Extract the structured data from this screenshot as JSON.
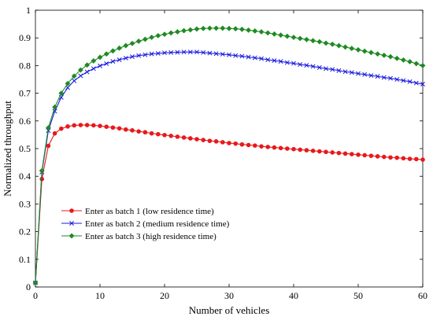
{
  "chart_data": {
    "type": "line",
    "title": "",
    "xlabel": "Number of vehicles",
    "ylabel": "Normalized throughput",
    "xlim": [
      0,
      60
    ],
    "ylim": [
      0,
      1
    ],
    "xticks": [
      0,
      10,
      20,
      30,
      40,
      50,
      60
    ],
    "yticks": [
      0,
      0.1,
      0.2,
      0.3,
      0.4,
      0.5,
      0.6,
      0.7,
      0.8,
      0.9,
      1
    ],
    "grid": false,
    "legend_position": "lower-left",
    "series": [
      {
        "name": "Enter as batch 1 (low residence time)",
        "color": "#e8191c",
        "marker": "dot",
        "points": [
          [
            0,
            0.015
          ],
          [
            1,
            0.39
          ],
          [
            2,
            0.51
          ],
          [
            3,
            0.555
          ],
          [
            4,
            0.572
          ],
          [
            5,
            0.58
          ],
          [
            6,
            0.584
          ],
          [
            7,
            0.585
          ],
          [
            8,
            0.585
          ],
          [
            9,
            0.584
          ],
          [
            10,
            0.582
          ],
          [
            11,
            0.579
          ],
          [
            12,
            0.576
          ],
          [
            13,
            0.573
          ],
          [
            14,
            0.569
          ],
          [
            15,
            0.566
          ],
          [
            16,
            0.562
          ],
          [
            17,
            0.559
          ],
          [
            18,
            0.555
          ],
          [
            19,
            0.552
          ],
          [
            20,
            0.549
          ],
          [
            21,
            0.546
          ],
          [
            22,
            0.543
          ],
          [
            23,
            0.54
          ],
          [
            24,
            0.537
          ],
          [
            25,
            0.534
          ],
          [
            26,
            0.531
          ],
          [
            27,
            0.528
          ],
          [
            28,
            0.526
          ],
          [
            29,
            0.523
          ],
          [
            30,
            0.52
          ],
          [
            31,
            0.518
          ],
          [
            32,
            0.515
          ],
          [
            33,
            0.513
          ],
          [
            34,
            0.511
          ],
          [
            35,
            0.508
          ],
          [
            36,
            0.506
          ],
          [
            37,
            0.504
          ],
          [
            38,
            0.502
          ],
          [
            39,
            0.5
          ],
          [
            40,
            0.498
          ],
          [
            41,
            0.496
          ],
          [
            42,
            0.494
          ],
          [
            43,
            0.492
          ],
          [
            44,
            0.49
          ],
          [
            45,
            0.488
          ],
          [
            46,
            0.486
          ],
          [
            47,
            0.484
          ],
          [
            48,
            0.482
          ],
          [
            49,
            0.48
          ],
          [
            50,
            0.478
          ],
          [
            51,
            0.476
          ],
          [
            52,
            0.474
          ],
          [
            53,
            0.472
          ],
          [
            54,
            0.47
          ],
          [
            55,
            0.468
          ],
          [
            56,
            0.467
          ],
          [
            57,
            0.465
          ],
          [
            58,
            0.463
          ],
          [
            59,
            0.462
          ],
          [
            60,
            0.46
          ]
        ]
      },
      {
        "name": "Enter as batch 2 (medium residence time)",
        "color": "#1a1adf",
        "marker": "x",
        "points": [
          [
            0,
            0.015
          ],
          [
            1,
            0.415
          ],
          [
            2,
            0.565
          ],
          [
            3,
            0.635
          ],
          [
            4,
            0.685
          ],
          [
            5,
            0.72
          ],
          [
            6,
            0.745
          ],
          [
            7,
            0.763
          ],
          [
            8,
            0.777
          ],
          [
            9,
            0.789
          ],
          [
            10,
            0.799
          ],
          [
            11,
            0.807
          ],
          [
            12,
            0.815
          ],
          [
            13,
            0.821
          ],
          [
            14,
            0.827
          ],
          [
            15,
            0.832
          ],
          [
            16,
            0.836
          ],
          [
            17,
            0.839
          ],
          [
            18,
            0.842
          ],
          [
            19,
            0.844
          ],
          [
            20,
            0.846
          ],
          [
            21,
            0.847
          ],
          [
            22,
            0.848
          ],
          [
            23,
            0.849
          ],
          [
            24,
            0.849
          ],
          [
            25,
            0.849
          ],
          [
            26,
            0.847
          ],
          [
            27,
            0.845
          ],
          [
            28,
            0.843
          ],
          [
            29,
            0.841
          ],
          [
            30,
            0.839
          ],
          [
            31,
            0.836
          ],
          [
            32,
            0.834
          ],
          [
            33,
            0.831
          ],
          [
            34,
            0.828
          ],
          [
            35,
            0.825
          ],
          [
            36,
            0.821
          ],
          [
            37,
            0.818
          ],
          [
            38,
            0.815
          ],
          [
            39,
            0.811
          ],
          [
            40,
            0.808
          ],
          [
            41,
            0.804
          ],
          [
            42,
            0.801
          ],
          [
            43,
            0.797
          ],
          [
            44,
            0.793
          ],
          [
            45,
            0.789
          ],
          [
            46,
            0.786
          ],
          [
            47,
            0.782
          ],
          [
            48,
            0.778
          ],
          [
            49,
            0.775
          ],
          [
            50,
            0.771
          ],
          [
            51,
            0.768
          ],
          [
            52,
            0.764
          ],
          [
            53,
            0.761
          ],
          [
            54,
            0.757
          ],
          [
            55,
            0.754
          ],
          [
            56,
            0.75
          ],
          [
            57,
            0.746
          ],
          [
            58,
            0.742
          ],
          [
            59,
            0.737
          ],
          [
            60,
            0.733
          ]
        ]
      },
      {
        "name": "Enter as batch 3 (high residence time)",
        "color": "#1f8a22",
        "marker": "diamond",
        "points": [
          [
            0,
            0.015
          ],
          [
            1,
            0.42
          ],
          [
            2,
            0.575
          ],
          [
            3,
            0.65
          ],
          [
            4,
            0.7
          ],
          [
            5,
            0.735
          ],
          [
            6,
            0.762
          ],
          [
            7,
            0.784
          ],
          [
            8,
            0.802
          ],
          [
            9,
            0.817
          ],
          [
            10,
            0.83
          ],
          [
            11,
            0.842
          ],
          [
            12,
            0.853
          ],
          [
            13,
            0.863
          ],
          [
            14,
            0.872
          ],
          [
            15,
            0.88
          ],
          [
            16,
            0.888
          ],
          [
            17,
            0.895
          ],
          [
            18,
            0.902
          ],
          [
            19,
            0.908
          ],
          [
            20,
            0.913
          ],
          [
            21,
            0.918
          ],
          [
            22,
            0.922
          ],
          [
            23,
            0.926
          ],
          [
            24,
            0.929
          ],
          [
            25,
            0.932
          ],
          [
            26,
            0.934
          ],
          [
            27,
            0.935
          ],
          [
            28,
            0.935
          ],
          [
            29,
            0.935
          ],
          [
            30,
            0.934
          ],
          [
            31,
            0.933
          ],
          [
            32,
            0.931
          ],
          [
            33,
            0.928
          ],
          [
            34,
            0.925
          ],
          [
            35,
            0.922
          ],
          [
            36,
            0.918
          ],
          [
            37,
            0.914
          ],
          [
            38,
            0.91
          ],
          [
            39,
            0.906
          ],
          [
            40,
            0.902
          ],
          [
            41,
            0.898
          ],
          [
            42,
            0.894
          ],
          [
            43,
            0.89
          ],
          [
            44,
            0.886
          ],
          [
            45,
            0.881
          ],
          [
            46,
            0.877
          ],
          [
            47,
            0.872
          ],
          [
            48,
            0.867
          ],
          [
            49,
            0.862
          ],
          [
            50,
            0.857
          ],
          [
            51,
            0.852
          ],
          [
            52,
            0.847
          ],
          [
            53,
            0.842
          ],
          [
            54,
            0.837
          ],
          [
            55,
            0.832
          ],
          [
            56,
            0.826
          ],
          [
            57,
            0.82
          ],
          [
            58,
            0.814
          ],
          [
            59,
            0.807
          ],
          [
            60,
            0.8
          ]
        ]
      }
    ]
  }
}
